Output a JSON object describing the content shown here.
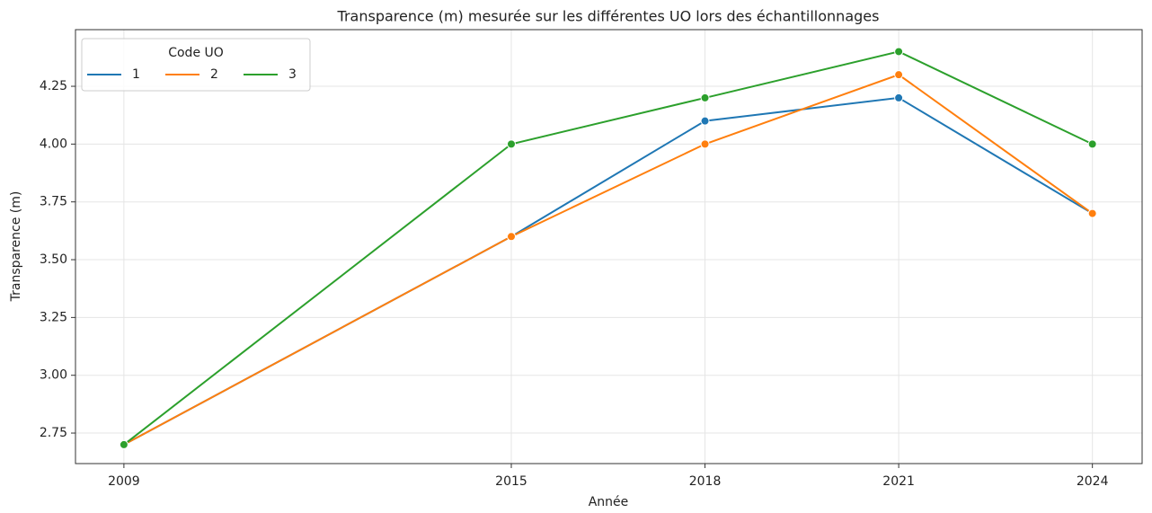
{
  "chart_data": {
    "type": "line",
    "title": "Transparence (m) mesurée sur les différentes UO lors des échantillonnages",
    "xlabel": "Année",
    "ylabel": "Transparence (m)",
    "x": [
      2009,
      2015,
      2018,
      2021,
      2024
    ],
    "series": [
      {
        "name": "1",
        "color": "#1f77b4",
        "values": [
          2.7,
          3.6,
          4.1,
          4.2,
          3.7
        ]
      },
      {
        "name": "2",
        "color": "#ff7f0e",
        "values": [
          2.7,
          3.6,
          4.0,
          4.3,
          3.7
        ]
      },
      {
        "name": "3",
        "color": "#2ca02c",
        "values": [
          2.7,
          4.0,
          4.2,
          4.4,
          4.0
        ]
      }
    ],
    "xlim": [
      2008.25,
      2024.77
    ],
    "xticks": [
      2009,
      2015,
      2018,
      2021,
      2024
    ],
    "ylim": [
      2.618,
      4.495
    ],
    "yticks": [
      2.75,
      {
        "value": 3,
        "label": "3.00"
      },
      3.25,
      {
        "value": 3.5,
        "label": "3.50"
      },
      3.75,
      {
        "value": 4,
        "label": "4.00"
      },
      4.25
    ],
    "grid": true,
    "legend_title": "Code UO",
    "legend_position": "upper left"
  }
}
